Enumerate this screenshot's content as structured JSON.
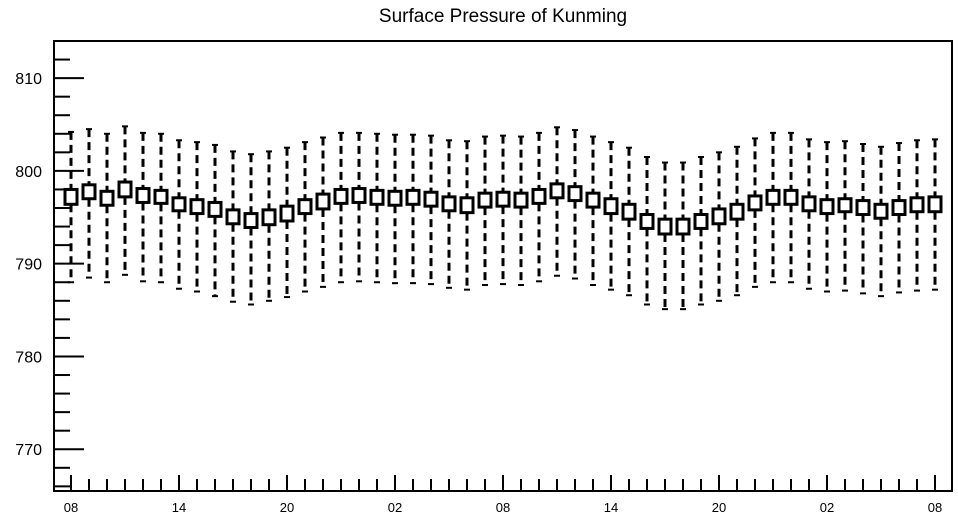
{
  "chart_data": {
    "type": "boxplot",
    "title": "Surface Pressure of Kunming",
    "xlabel": "",
    "ylabel": "",
    "ylim": [
      765.5,
      814
    ],
    "y_ticks": [
      770,
      780,
      790,
      800,
      810
    ],
    "y_minor_step": 2,
    "x_tick_labels": [
      "08",
      "14",
      "20",
      "02",
      "08",
      "14",
      "20",
      "02",
      "08"
    ],
    "x_tick_label_every": 6,
    "series": [
      {
        "box_low": [
          796.4,
          797.0,
          796.3,
          797.2,
          796.6,
          796.5,
          795.7,
          795.4,
          795.1,
          794.3,
          793.9,
          794.2,
          794.6,
          795.4,
          795.9,
          796.5,
          796.6,
          796.4,
          796.3,
          796.4,
          796.2,
          795.7,
          795.5,
          796.1,
          796.2,
          796.1,
          796.5,
          797.1,
          796.8,
          796.1,
          795.4,
          794.8,
          793.8,
          793.2,
          793.2,
          793.8,
          794.3,
          794.8,
          795.8,
          796.4,
          796.4,
          795.7,
          795.4,
          795.6,
          795.3,
          794.9,
          795.3,
          795.6,
          795.6
        ],
        "box_high": [
          798.0,
          798.5,
          797.8,
          798.8,
          798.1,
          797.9,
          797.1,
          796.9,
          796.6,
          795.8,
          795.4,
          795.8,
          796.2,
          796.9,
          797.5,
          798.0,
          798.1,
          797.9,
          797.8,
          797.9,
          797.7,
          797.2,
          797.1,
          797.6,
          797.7,
          797.6,
          798.0,
          798.6,
          798.3,
          797.6,
          797.0,
          796.4,
          795.3,
          794.8,
          794.8,
          795.3,
          795.9,
          796.4,
          797.3,
          797.9,
          797.9,
          797.2,
          796.9,
          797.0,
          796.8,
          796.4,
          796.8,
          797.1,
          797.2
        ],
        "whisker_low": [
          788.0,
          788.5,
          788.0,
          788.8,
          788.1,
          788.0,
          787.3,
          787.0,
          786.5,
          785.9,
          785.6,
          786.0,
          786.4,
          787.0,
          787.5,
          788.0,
          788.1,
          788.0,
          787.9,
          787.9,
          787.8,
          787.4,
          787.2,
          787.7,
          787.8,
          787.7,
          788.1,
          788.7,
          788.4,
          787.7,
          787.2,
          786.6,
          785.6,
          785.1,
          785.1,
          785.6,
          786.0,
          786.6,
          787.5,
          788.0,
          788.0,
          787.3,
          787.0,
          787.1,
          786.8,
          786.5,
          786.9,
          787.1,
          787.2
        ],
        "whisker_high": [
          804.2,
          804.5,
          804.0,
          804.8,
          804.1,
          804.0,
          803.3,
          803.1,
          802.8,
          802.1,
          801.8,
          802.1,
          802.5,
          803.1,
          803.6,
          804.1,
          804.1,
          804.0,
          803.9,
          803.9,
          803.8,
          803.3,
          803.2,
          803.7,
          803.8,
          803.7,
          804.1,
          804.7,
          804.4,
          803.7,
          803.1,
          802.5,
          801.5,
          800.9,
          800.9,
          801.5,
          802.0,
          802.6,
          803.5,
          804.1,
          804.1,
          803.4,
          803.1,
          803.2,
          802.9,
          802.6,
          803.0,
          803.3,
          803.4
        ]
      }
    ]
  }
}
